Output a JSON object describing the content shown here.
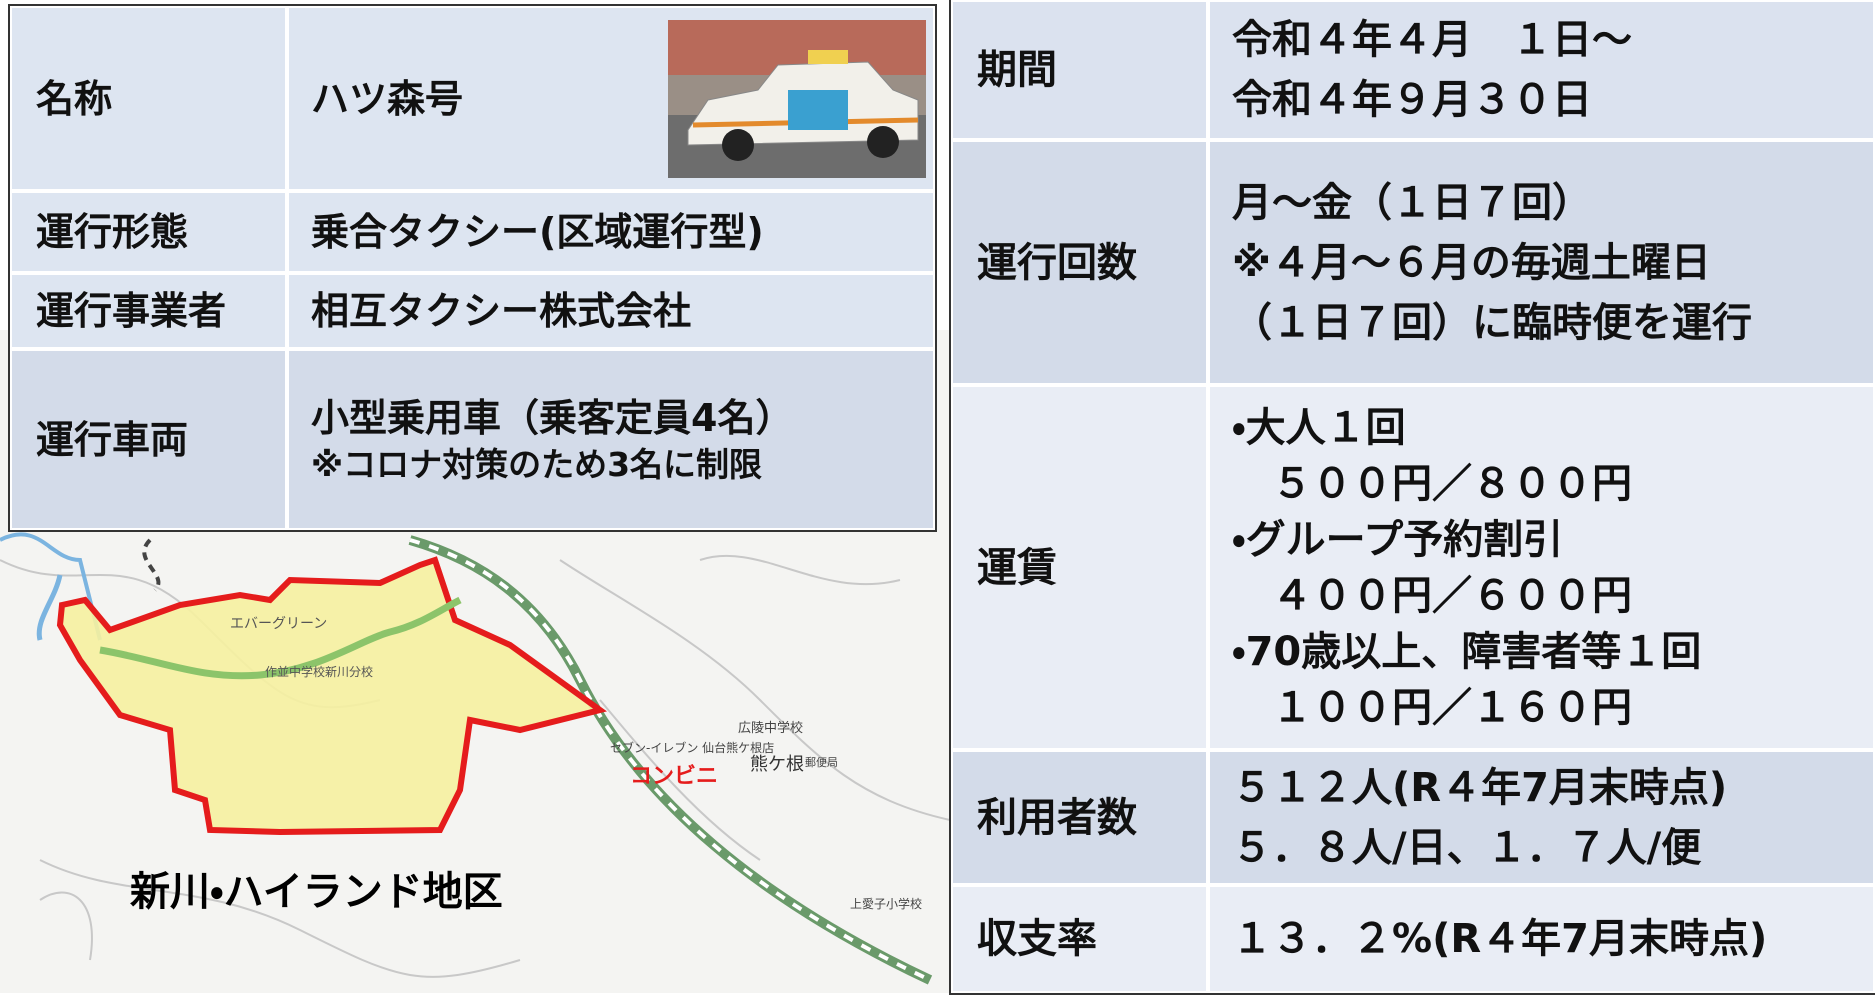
{
  "left_table": {
    "rows": [
      [
        [
          "名称"
        ],
        [
          "ハツ森号"
        ]
      ],
      [
        [
          "運行形態"
        ],
        [
          "乗合タクシー(区域運行型)"
        ]
      ],
      [
        [
          "運行事業者"
        ],
        [
          "相互タクシー株式会社"
        ]
      ],
      [
        [
          "運行車両"
        ],
        [
          "小型乗用車（乗客定員4名）",
          "※コロナ対策のため3名に制限"
        ]
      ]
    ]
  },
  "right_table": {
    "rows": [
      [
        [
          "期間"
        ],
        [
          "令和４年４月　１日～",
          "令和４年９月３０日"
        ]
      ],
      [
        [
          "運行回数"
        ],
        [
          "月～金（１日７回）",
          "※４月～６月の毎週土曜日",
          "（１日７回）に臨時便を運行"
        ]
      ],
      [
        [
          "運賃"
        ],
        [
          "・大人１回",
          "　５００円／８００円",
          "・グループ予約割引",
          "　４００円／６００円",
          "・70歳以上、障害者等１回",
          "　１００円／１６０円"
        ]
      ],
      [
        [
          "利用者数"
        ],
        [
          "５１２人(R４年7月末時点)",
          "５．８人/日、１．７人/便"
        ]
      ],
      [
        [
          "収支率"
        ],
        [
          "１３．２%(R４年7月末時点)"
        ]
      ]
    ]
  },
  "map": {
    "area_label": "新川・ハイランド地区",
    "store_label": "コンビニ",
    "labels": [
      "エバーグリーン",
      "作並中学校新川分校",
      "セブン-イレブン 仙台熊ケ根店",
      "熊ケ根",
      "郵便局",
      "広陵中学校",
      "上愛子小学校"
    ]
  }
}
